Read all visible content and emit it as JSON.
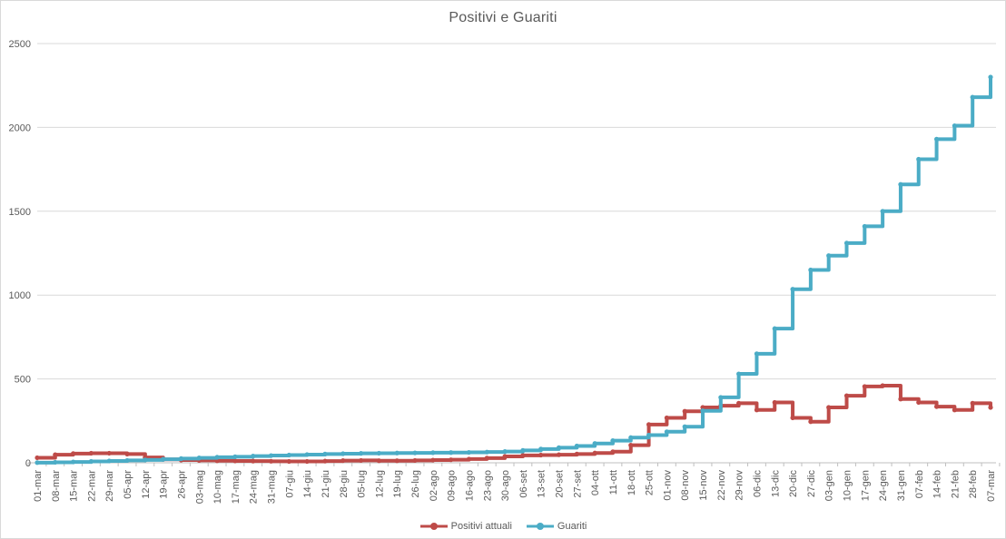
{
  "title": "Positivi e Guariti",
  "colors": {
    "background": "#FFFFFF",
    "frame_border": "#D9D9D9",
    "gridline": "#D9D9D9",
    "axis_line": "#BFBFBF",
    "text": "#595959",
    "series_positivi": "#BE4B48",
    "series_guariti": "#4BACC6"
  },
  "axes": {
    "y_tick_labels": [
      "0",
      "500",
      "1000",
      "1500",
      "2000",
      "2500"
    ],
    "y_tick_values": [
      0,
      500,
      1000,
      1500,
      2000,
      2500
    ]
  },
  "chart_data": {
    "type": "line",
    "title": "Positivi e Guariti",
    "line_style": "step-with-markers",
    "grid": true,
    "legend_position": "bottom",
    "x_label_rotation": -90,
    "ylim": [
      0,
      2500
    ],
    "x": [
      "01-mar",
      "08-mar",
      "15-mar",
      "22-mar",
      "29-mar",
      "05-apr",
      "12-apr",
      "19-apr",
      "26-apr",
      "03-mag",
      "10-mag",
      "17-mag",
      "24-mag",
      "31-mag",
      "07-giu",
      "14-giu",
      "21-giu",
      "28-giu",
      "05-lug",
      "12-lug",
      "19-lug",
      "26-lug",
      "02-ago",
      "09-ago",
      "16-ago",
      "23-ago",
      "30-ago",
      "06-set",
      "13-set",
      "20-set",
      "27-set",
      "04-ott",
      "11-ott",
      "18-ott",
      "25-ott",
      "01-nov",
      "08-nov",
      "15-nov",
      "22-nov",
      "29-nov",
      "06-dic",
      "13-dic",
      "20-dic",
      "27-dic",
      "03-gen",
      "10-gen",
      "17-gen",
      "24-gen",
      "31-gen",
      "07-feb",
      "14-feb",
      "21-feb",
      "28-feb",
      "07-mar"
    ],
    "series": [
      {
        "name": "Positivi attuali",
        "color": "#BE4B48",
        "values": [
          30,
          48,
          55,
          57,
          57,
          52,
          32,
          20,
          16,
          14,
          12,
          11,
          10,
          9,
          8,
          8,
          10,
          13,
          14,
          12,
          12,
          14,
          16,
          18,
          22,
          28,
          38,
          44,
          46,
          48,
          52,
          58,
          66,
          105,
          228,
          268,
          307,
          330,
          340,
          355,
          315,
          360,
          268,
          245,
          330,
          400,
          455,
          460,
          380,
          360,
          335,
          315,
          355,
          330
        ]
      },
      {
        "name": "Guariti",
        "color": "#4BACC6",
        "values": [
          1,
          3,
          5,
          8,
          11,
          14,
          17,
          21,
          25,
          29,
          33,
          36,
          40,
          43,
          46,
          49,
          52,
          54,
          56,
          57,
          58,
          59,
          60,
          61,
          62,
          64,
          67,
          74,
          82,
          90,
          100,
          115,
          132,
          150,
          165,
          185,
          215,
          310,
          390,
          530,
          650,
          800,
          1035,
          1150,
          1235,
          1310,
          1410,
          1500,
          1660,
          1810,
          1930,
          2010,
          2180,
          2300
        ]
      }
    ]
  }
}
